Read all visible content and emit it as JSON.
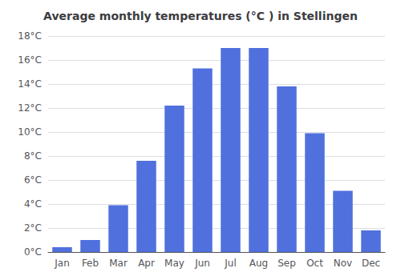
{
  "chart_data": {
    "type": "bar",
    "title": "Average monthly temperatures (°C ) in Stellingen",
    "categories": [
      "Jan",
      "Feb",
      "Mar",
      "Apr",
      "May",
      "Jun",
      "Jul",
      "Aug",
      "Sep",
      "Oct",
      "Nov",
      "Dec"
    ],
    "values": [
      0.4,
      1.0,
      3.9,
      7.6,
      12.2,
      15.3,
      17.0,
      17.0,
      13.8,
      9.9,
      5.1,
      1.8
    ],
    "ylim": [
      0,
      18
    ],
    "yticks": [
      {
        "value": 0,
        "label": "0°C"
      },
      {
        "value": 2,
        "label": "2°C"
      },
      {
        "value": 4,
        "label": "4°C"
      },
      {
        "value": 6,
        "label": "6°C"
      },
      {
        "value": 8,
        "label": "8°C"
      },
      {
        "value": 10,
        "label": "10°C"
      },
      {
        "value": 12,
        "label": "12°C"
      },
      {
        "value": 14,
        "label": "14°C"
      },
      {
        "value": 16,
        "label": "16°C"
      },
      {
        "value": 18,
        "label": "18°C"
      }
    ],
    "grid": true
  }
}
